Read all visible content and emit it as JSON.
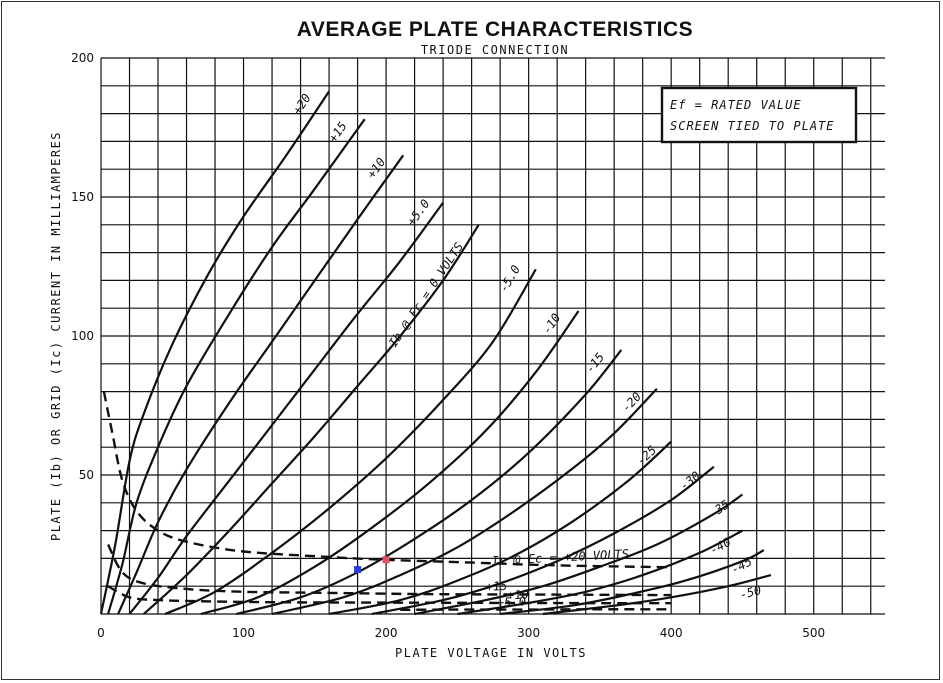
{
  "chart_data": {
    "type": "line",
    "title": "AVERAGE PLATE CHARACTERISTICS",
    "subtitle": "TRIODE CONNECTION",
    "xlabel": "PLATE VOLTAGE IN VOLTS",
    "ylabel": "PLATE (Ib) OR GRID (Ic) CURRENT IN MILLIAMPERES",
    "xlim": [
      0,
      550
    ],
    "ylim": [
      0,
      200
    ],
    "xticks": [
      "0",
      "100",
      "200",
      "300",
      "400",
      "500"
    ],
    "yticks": [
      "50",
      "100",
      "150",
      "200"
    ],
    "grid": true,
    "note_lines": [
      "Ef = RATED VALUE",
      "SCREEN TIED TO PLATE"
    ],
    "plate_current_label": "Ib @ Ec = 0 VOLTS",
    "grid_current_label": "Ic @ Ec = +20 VOLTS",
    "series": [
      {
        "name": "+20",
        "kind": "plate",
        "label": "+20",
        "x": [
          0,
          10,
          20,
          30,
          50,
          75,
          100,
          130,
          160
        ],
        "y": [
          0,
          25,
          55,
          72,
          97,
          122,
          143,
          165,
          188
        ]
      },
      {
        "name": "+15",
        "kind": "plate",
        "label": "+15",
        "x": [
          5,
          15,
          25,
          40,
          60,
          90,
          120,
          150,
          185
        ],
        "y": [
          0,
          18,
          40,
          60,
          82,
          108,
          132,
          153,
          178
        ]
      },
      {
        "name": "+10",
        "kind": "plate",
        "label": "+10",
        "x": [
          12,
          25,
          40,
          60,
          90,
          120,
          150,
          180,
          212
        ],
        "y": [
          0,
          15,
          33,
          52,
          76,
          98,
          120,
          142,
          165
        ]
      },
      {
        "name": "+5.0",
        "kind": "plate",
        "label": "+5.0",
        "x": [
          20,
          40,
          60,
          90,
          120,
          150,
          180,
          210,
          240
        ],
        "y": [
          0,
          13,
          28,
          48,
          68,
          88,
          108,
          127,
          148
        ]
      },
      {
        "name": "0",
        "kind": "plate",
        "label": "",
        "x": [
          30,
          60,
          90,
          120,
          150,
          180,
          210,
          240,
          265
        ],
        "y": [
          0,
          14,
          30,
          47,
          64,
          82,
          100,
          120,
          140
        ]
      },
      {
        "name": "-5.0",
        "kind": "plate",
        "label": "-5.0",
        "x": [
          45,
          80,
          120,
          160,
          200,
          240,
          275,
          305
        ],
        "y": [
          0,
          8,
          22,
          38,
          56,
          77,
          98,
          124
        ]
      },
      {
        "name": "-10",
        "kind": "plate",
        "label": "-10",
        "x": [
          70,
          110,
          150,
          190,
          230,
          270,
          305,
          335
        ],
        "y": [
          0,
          6,
          17,
          31,
          47,
          66,
          87,
          109
        ]
      },
      {
        "name": "-15",
        "kind": "plate",
        "label": "-15",
        "x": [
          95,
          140,
          180,
          220,
          260,
          300,
          340,
          365
        ],
        "y": [
          0,
          6,
          15,
          27,
          41,
          58,
          79,
          95
        ]
      },
      {
        "name": "-20",
        "kind": "plate",
        "label": "-20",
        "x": [
          120,
          170,
          210,
          250,
          290,
          330,
          360,
          390
        ],
        "y": [
          0,
          6,
          14,
          24,
          37,
          52,
          65,
          81
        ]
      },
      {
        "name": "-25",
        "kind": "plate",
        "label": "-25",
        "x": [
          160,
          210,
          250,
          290,
          330,
          370,
          400
        ],
        "y": [
          0,
          5,
          12,
          21,
          33,
          48,
          62
        ]
      },
      {
        "name": "-30",
        "kind": "plate",
        "label": "-30",
        "x": [
          190,
          240,
          280,
          320,
          360,
          400,
          430
        ],
        "y": [
          0,
          5,
          11,
          19,
          29,
          41,
          53
        ]
      },
      {
        "name": "-35",
        "kind": "plate",
        "label": "-35",
        "x": [
          220,
          270,
          310,
          350,
          390,
          430,
          450
        ],
        "y": [
          0,
          5,
          10,
          17,
          25,
          36,
          43
        ]
      },
      {
        "name": "-40",
        "kind": "plate",
        "label": "-40",
        "x": [
          250,
          300,
          340,
          380,
          420,
          450
        ],
        "y": [
          0,
          4,
          8,
          14,
          22,
          30
        ]
      },
      {
        "name": "-45",
        "kind": "plate",
        "label": "-45",
        "x": [
          280,
          330,
          370,
          410,
          450,
          465
        ],
        "y": [
          0,
          3,
          7,
          12,
          19,
          23
        ]
      },
      {
        "name": "-50",
        "kind": "plate",
        "label": "-50",
        "x": [
          310,
          360,
          400,
          440,
          470
        ],
        "y": [
          0,
          3,
          6,
          10,
          14
        ]
      },
      {
        "name": "Ic +20",
        "kind": "grid",
        "label": "",
        "x": [
          2,
          8,
          15,
          25,
          40,
          60,
          100,
          160,
          200,
          260,
          320,
          400
        ],
        "y": [
          80,
          65,
          48,
          37,
          30,
          26,
          22.5,
          20.5,
          19.5,
          18.5,
          17.5,
          16.8
        ]
      },
      {
        "name": "Ic +15",
        "kind": "grid",
        "label": "+15",
        "x": [
          5,
          15,
          30,
          60,
          100,
          160,
          220,
          300,
          400
        ],
        "y": [
          25,
          15,
          11,
          9,
          8,
          7.6,
          7.2,
          7,
          6.8
        ]
      },
      {
        "name": "Ic +10",
        "kind": "grid",
        "label": "+10",
        "x": [
          5,
          20,
          40,
          80,
          130,
          200,
          280,
          360,
          400
        ],
        "y": [
          10,
          6,
          5,
          4.5,
          4.2,
          4.1,
          4,
          3.9,
          3.9
        ]
      },
      {
        "name": "Ic +5.0",
        "kind": "grid",
        "label": "+5.0",
        "x": [
          210,
          250,
          300,
          350,
          400
        ],
        "y": [
          1.5,
          1.6,
          1.6,
          1.7,
          1.7
        ]
      }
    ],
    "markers": [
      {
        "name": "blue",
        "x": 180,
        "y": 16,
        "color": "#2a3fd6"
      },
      {
        "name": "red",
        "x": 200,
        "y": 19.5,
        "color": "#e0506a"
      }
    ]
  }
}
